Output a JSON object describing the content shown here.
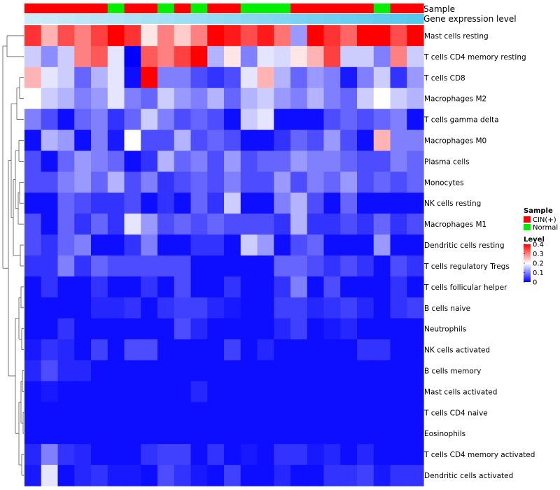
{
  "chart_data": {
    "type": "heatmap",
    "title": "",
    "annotation_tracks": [
      "Sample",
      "Gene expression level"
    ],
    "columns": 24,
    "sample_groups": [
      "CIN(+)",
      "CIN(+)",
      "CIN(+)",
      "CIN(+)",
      "CIN(+)",
      "Normal",
      "CIN(+)",
      "CIN(+)",
      "Normal",
      "CIN(+)",
      "Normal",
      "CIN(+)",
      "CIN(+)",
      "Normal",
      "Normal",
      "Normal",
      "CIN(+)",
      "CIN(+)",
      "CIN(+)",
      "CIN(+)",
      "CIN(+)",
      "Normal",
      "CIN(+)",
      "CIN(+)"
    ],
    "rows": [
      "Mast cells resting",
      "T cells CD4 memory resting",
      "T cells CD8",
      "Macrophages M2",
      "T cells gamma delta",
      "Macrophages M0",
      "Plasma cells",
      "Monocytes",
      "NK cells resting",
      "Macrophages M1",
      "Dendritic cells resting",
      "T cells regulatory  Tregs",
      "T cells follicular helper",
      "B cells naive",
      "Neutrophils",
      "NK cells activated",
      "B cells memory",
      "Mast cells activated",
      "T cells CD4 naive",
      "Eosinophils",
      "T cells CD4 memory activated",
      "Dendritic cells activated"
    ],
    "values": [
      [
        0.36,
        0.26,
        0.34,
        0.3,
        0.35,
        0.4,
        0.36,
        0.22,
        0.3,
        0.24,
        0.3,
        0.4,
        0.38,
        0.34,
        0.38,
        0.31,
        0.12,
        0.4,
        0.36,
        0.32,
        0.4,
        0.4,
        0.34,
        0.4
      ],
      [
        0.16,
        0.11,
        0.16,
        0.3,
        0.33,
        0.18,
        0.0,
        0.33,
        0.3,
        0.35,
        0.4,
        0.14,
        0.22,
        0.1,
        0.18,
        0.17,
        0.22,
        0.26,
        0.35,
        0.16,
        0.16,
        0.1,
        0.3,
        0.16
      ],
      [
        0.26,
        0.18,
        0.16,
        0.08,
        0.14,
        0.18,
        0.01,
        0.42,
        0.1,
        0.1,
        0.06,
        0.04,
        0.06,
        0.18,
        0.26,
        0.14,
        0.08,
        0.12,
        0.1,
        0.02,
        0.1,
        0.16,
        0.04,
        0.12
      ],
      [
        0.2,
        0.16,
        0.14,
        0.1,
        0.12,
        0.18,
        0.1,
        0.08,
        0.16,
        0.12,
        0.1,
        0.14,
        0.08,
        0.14,
        0.16,
        0.12,
        0.1,
        0.14,
        0.1,
        0.08,
        0.16,
        0.2,
        0.16,
        0.14
      ],
      [
        0.1,
        0.06,
        0.01,
        0.08,
        0.1,
        0.04,
        0.08,
        0.16,
        0.1,
        0.06,
        0.08,
        0.06,
        0.01,
        0.16,
        0.18,
        0.01,
        0.01,
        0.01,
        0.06,
        0.08,
        0.06,
        0.08,
        0.1,
        0.01
      ],
      [
        0.01,
        0.14,
        0.12,
        0.01,
        0.1,
        0.02,
        0.2,
        0.06,
        0.06,
        0.14,
        0.06,
        0.08,
        0.06,
        0.01,
        0.01,
        0.04,
        0.08,
        0.06,
        0.12,
        0.06,
        0.01,
        0.26,
        0.1,
        0.1
      ],
      [
        0.06,
        0.01,
        0.08,
        0.12,
        0.1,
        0.08,
        0.01,
        0.04,
        0.14,
        0.08,
        0.1,
        0.06,
        0.12,
        0.06,
        0.08,
        0.08,
        0.12,
        0.1,
        0.1,
        0.08,
        0.06,
        0.06,
        0.1,
        0.08
      ],
      [
        0.06,
        0.06,
        0.1,
        0.12,
        0.08,
        0.14,
        0.06,
        0.1,
        0.04,
        0.06,
        0.08,
        0.06,
        0.1,
        0.06,
        0.06,
        0.12,
        0.06,
        0.1,
        0.08,
        0.12,
        0.06,
        0.08,
        0.06,
        0.08
      ],
      [
        0.01,
        0.01,
        0.08,
        0.06,
        0.04,
        0.04,
        0.06,
        0.01,
        0.04,
        0.01,
        0.08,
        0.04,
        0.16,
        0.01,
        0.01,
        0.1,
        0.14,
        0.06,
        0.01,
        0.08,
        0.01,
        0.01,
        0.01,
        0.01
      ],
      [
        0.06,
        0.01,
        0.08,
        0.04,
        0.08,
        0.04,
        0.18,
        0.12,
        0.06,
        0.08,
        0.06,
        0.08,
        0.06,
        0.06,
        0.06,
        0.04,
        0.14,
        0.04,
        0.04,
        0.06,
        0.04,
        0.08,
        0.04,
        0.06
      ],
      [
        0.06,
        0.04,
        0.08,
        0.1,
        0.01,
        0.01,
        0.04,
        0.1,
        0.01,
        0.01,
        0.04,
        0.04,
        0.01,
        0.16,
        0.12,
        0.01,
        0.06,
        0.08,
        0.01,
        0.01,
        0.01,
        0.12,
        0.01,
        0.01
      ],
      [
        0.04,
        0.04,
        0.1,
        0.04,
        0.08,
        0.06,
        0.06,
        0.06,
        0.06,
        0.06,
        0.01,
        0.01,
        0.01,
        0.01,
        0.01,
        0.08,
        0.08,
        0.06,
        0.04,
        0.06,
        0.04,
        0.01,
        0.06,
        0.04
      ],
      [
        0.01,
        0.04,
        0.01,
        0.01,
        0.04,
        0.01,
        0.01,
        0.04,
        0.01,
        0.06,
        0.01,
        0.01,
        0.04,
        0.01,
        0.01,
        0.04,
        0.1,
        0.01,
        0.06,
        0.01,
        0.01,
        0.01,
        0.04,
        0.01
      ],
      [
        0.01,
        0.01,
        0.01,
        0.01,
        0.03,
        0.03,
        0.04,
        0.01,
        0.04,
        0.05,
        0.05,
        0.03,
        0.02,
        0.01,
        0.01,
        0.05,
        0.05,
        0.03,
        0.04,
        0.05,
        0.03,
        0.01,
        0.04,
        0.05
      ],
      [
        0.01,
        0.01,
        0.04,
        0.01,
        0.01,
        0.01,
        0.01,
        0.01,
        0.01,
        0.06,
        0.03,
        0.01,
        0.01,
        0.01,
        0.01,
        0.03,
        0.05,
        0.01,
        0.02,
        0.03,
        0.01,
        0.01,
        0.01,
        0.01
      ],
      [
        0.02,
        0.04,
        0.03,
        0.01,
        0.05,
        0.01,
        0.06,
        0.06,
        0.01,
        0.01,
        0.01,
        0.01,
        0.05,
        0.01,
        0.03,
        0.01,
        0.01,
        0.01,
        0.01,
        0.01,
        0.04,
        0.04,
        0.01,
        0.01
      ],
      [
        0.03,
        0.06,
        0.03,
        0.03,
        0.01,
        0.01,
        0.01,
        0.01,
        0.01,
        0.01,
        0.01,
        0.01,
        0.01,
        0.01,
        0.01,
        0.01,
        0.01,
        0.01,
        0.01,
        0.01,
        0.01,
        0.01,
        0.01,
        0.01
      ],
      [
        0.01,
        0.02,
        0.01,
        0.01,
        0.01,
        0.01,
        0.01,
        0.01,
        0.01,
        0.01,
        0.03,
        0.01,
        0.01,
        0.01,
        0.01,
        0.01,
        0.01,
        0.01,
        0.01,
        0.01,
        0.01,
        0.01,
        0.01,
        0.01
      ],
      [
        0.01,
        0.01,
        0.01,
        0.01,
        0.01,
        0.01,
        0.01,
        0.01,
        0.01,
        0.01,
        0.01,
        0.01,
        0.01,
        0.01,
        0.01,
        0.01,
        0.01,
        0.01,
        0.01,
        0.01,
        0.01,
        0.01,
        0.01,
        0.01
      ],
      [
        0.01,
        0.01,
        0.01,
        0.01,
        0.01,
        0.01,
        0.01,
        0.01,
        0.01,
        0.01,
        0.01,
        0.01,
        0.01,
        0.01,
        0.01,
        0.01,
        0.01,
        0.01,
        0.01,
        0.01,
        0.01,
        0.01,
        0.01,
        0.01
      ],
      [
        0.03,
        0.1,
        0.04,
        0.03,
        0.01,
        0.01,
        0.01,
        0.04,
        0.05,
        0.05,
        0.01,
        0.04,
        0.01,
        0.02,
        0.01,
        0.04,
        0.04,
        0.02,
        0.03,
        0.01,
        0.03,
        0.01,
        0.01,
        0.01
      ],
      [
        0.02,
        0.18,
        0.01,
        0.03,
        0.04,
        0.02,
        0.02,
        0.01,
        0.06,
        0.04,
        0.02,
        0.01,
        0.05,
        0.01,
        0.01,
        0.03,
        0.01,
        0.01,
        0.04,
        0.04,
        0.05,
        0.02,
        0.04,
        0.04
      ]
    ],
    "legend": {
      "sample_title": "Sample",
      "sample_entries": [
        {
          "label": "CIN(+)",
          "color": "#ff0000"
        },
        {
          "label": "Normal",
          "color": "#00ee00"
        }
      ],
      "level_title": "Level",
      "level_ticks": [
        "0.4",
        "0.3",
        "0.2",
        "0.1",
        "0"
      ],
      "level_range": [
        0,
        0.4
      ]
    },
    "colors": {
      "low": "#0000ff",
      "mid": "#ffffff",
      "high": "#ff0000",
      "expression_track": "#5bc8ee"
    }
  }
}
